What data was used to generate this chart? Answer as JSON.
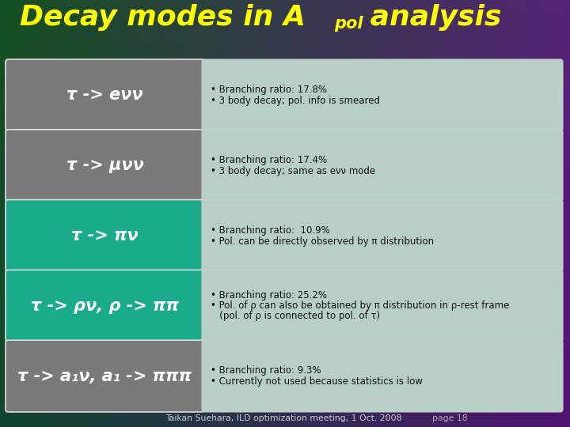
{
  "title_color": "#FFFF00",
  "rows": [
    {
      "left_text": "τ -> eνν",
      "left_bg": "#7a7a7a",
      "right_bullets": [
        "• Branching ratio: 17.8%",
        "• 3 body decay; pol. info is smeared"
      ],
      "right_bg": "#b8cfc8",
      "n_extra": 0
    },
    {
      "left_text": "τ -> μνν",
      "left_bg": "#7a7a7a",
      "right_bullets": [
        "• Branching ratio: 17.4%",
        "• 3 body decay; same as eνν mode"
      ],
      "right_bg": "#b8cfc8",
      "n_extra": 0
    },
    {
      "left_text": "τ -> πν",
      "left_bg": "#1aab8a",
      "right_bullets": [
        "• Branching ratio:  10.9%",
        "• Pol. can be directly observed by π distribution"
      ],
      "right_bg": "#b8cfc8",
      "n_extra": 0
    },
    {
      "left_text": "τ -> ρν, ρ -> ππ",
      "left_bg": "#1aab8a",
      "right_bullets": [
        "• Branching ratio: 25.2%",
        "• Pol. of ρ can also be obtained by π distribution in ρ-rest frame",
        "   (pol. of ρ is connected to pol. of τ)"
      ],
      "right_bg": "#b8cfc8",
      "n_extra": 1
    },
    {
      "left_text": "τ -> a₁ν, a₁ -> πππ",
      "left_bg": "#7a7a7a",
      "right_bullets": [
        "• Branching ratio: 9.3%",
        "• Currently not used because statistics is low"
      ],
      "right_bg": "#b8cfc8",
      "n_extra": 0
    }
  ],
  "footer_main": "Taikan Suehara, ILD optimization meeting, 1 Oct. 2008",
  "footer_page": "page 18",
  "footer_main_color": "#cccccc",
  "footer_page_color": "#aaaaaa"
}
